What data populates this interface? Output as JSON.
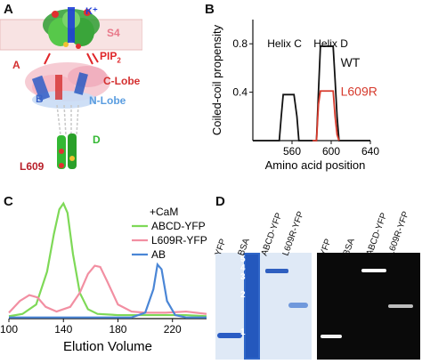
{
  "panel_labels": {
    "a": "A",
    "b": "B",
    "c": "C",
    "d": "D"
  },
  "structure": {
    "labels": {
      "k": "K⁺",
      "s4": "S4",
      "pip2": "PIP",
      "pip2_sub": "2",
      "a": "A",
      "clobe": "C-Lobe",
      "b": "B",
      "nlobe": "N-Lobe",
      "d": "D",
      "l609": "L609"
    },
    "colors": {
      "s4": "#e8798a",
      "pip2": "#e0262a",
      "clobe": "#d43030",
      "nlobe": "#5a9de0",
      "k": "#1f3fd8",
      "d": "#33b833",
      "l609": "#b8202a",
      "a": "#d43030",
      "b": "#3a64c8"
    }
  },
  "gel": {
    "lanes_left": [
      "YFP",
      "BSA",
      "ABCD-YFP",
      "L609R-YFP"
    ],
    "lanes_right": [
      "YFP",
      "BSA",
      "ABCD-YFP",
      "L609R-YFP"
    ],
    "marker_numbers": [
      "5",
      "4",
      "3",
      "2",
      "1"
    ]
  },
  "chart_data": [
    {
      "type": "line",
      "xlabel": "Amino acid position",
      "ylabel": "Coiled-coil propensity",
      "xlim": [
        520,
        640
      ],
      "ylim": [
        0,
        1
      ],
      "xticks": [
        560,
        600,
        640
      ],
      "yticks": [
        0.4,
        0.8
      ],
      "annotations": [
        "Helix C",
        "Helix D"
      ],
      "series": [
        {
          "name": "WT",
          "color": "#111111",
          "x": [
            520,
            547,
            549,
            551,
            562,
            565,
            567,
            581,
            585,
            587,
            589,
            602,
            604,
            606,
            608,
            640
          ],
          "y": [
            0,
            0,
            0.2,
            0.38,
            0.38,
            0.2,
            0,
            0,
            0,
            0.4,
            0.78,
            0.78,
            0.5,
            0.2,
            0,
            0
          ]
        },
        {
          "name": "L609R",
          "color": "#d63a2c",
          "x": [
            581,
            585,
            587,
            589,
            602,
            604,
            606,
            608
          ],
          "y": [
            0,
            0,
            0.3,
            0.41,
            0.41,
            0.2,
            0.05,
            0
          ]
        }
      ]
    },
    {
      "type": "line",
      "xlabel": "Elution Volume",
      "legend_title": "+CaM",
      "xlim": [
        100,
        245
      ],
      "ylim": [
        0,
        1
      ],
      "xticks": [
        100,
        140,
        180,
        220
      ],
      "series": [
        {
          "name": "ABCD-YFP",
          "color": "#7ed957",
          "x": [
            100,
            110,
            120,
            128,
            133,
            137,
            140,
            143,
            147,
            152,
            158,
            165,
            180,
            200,
            230,
            245
          ],
          "y": [
            0.02,
            0.04,
            0.12,
            0.4,
            0.72,
            0.93,
            0.98,
            0.9,
            0.55,
            0.22,
            0.08,
            0.04,
            0.03,
            0.03,
            0.03,
            0.02
          ]
        },
        {
          "name": "L609R-YFP",
          "color": "#f28fa2",
          "x": [
            100,
            108,
            115,
            121,
            127,
            135,
            145,
            152,
            158,
            163,
            167,
            172,
            180,
            190,
            200,
            215,
            230,
            245
          ],
          "y": [
            0.05,
            0.15,
            0.2,
            0.18,
            0.1,
            0.06,
            0.1,
            0.22,
            0.38,
            0.45,
            0.44,
            0.32,
            0.12,
            0.06,
            0.05,
            0.05,
            0.06,
            0.04
          ]
        },
        {
          "name": "AB",
          "color": "#4a86d6",
          "x": [
            100,
            140,
            190,
            200,
            206,
            209,
            212,
            216,
            222,
            230,
            245
          ],
          "y": [
            0.01,
            0.01,
            0.01,
            0.05,
            0.25,
            0.46,
            0.42,
            0.15,
            0.03,
            0.01,
            0.01
          ]
        }
      ]
    }
  ]
}
